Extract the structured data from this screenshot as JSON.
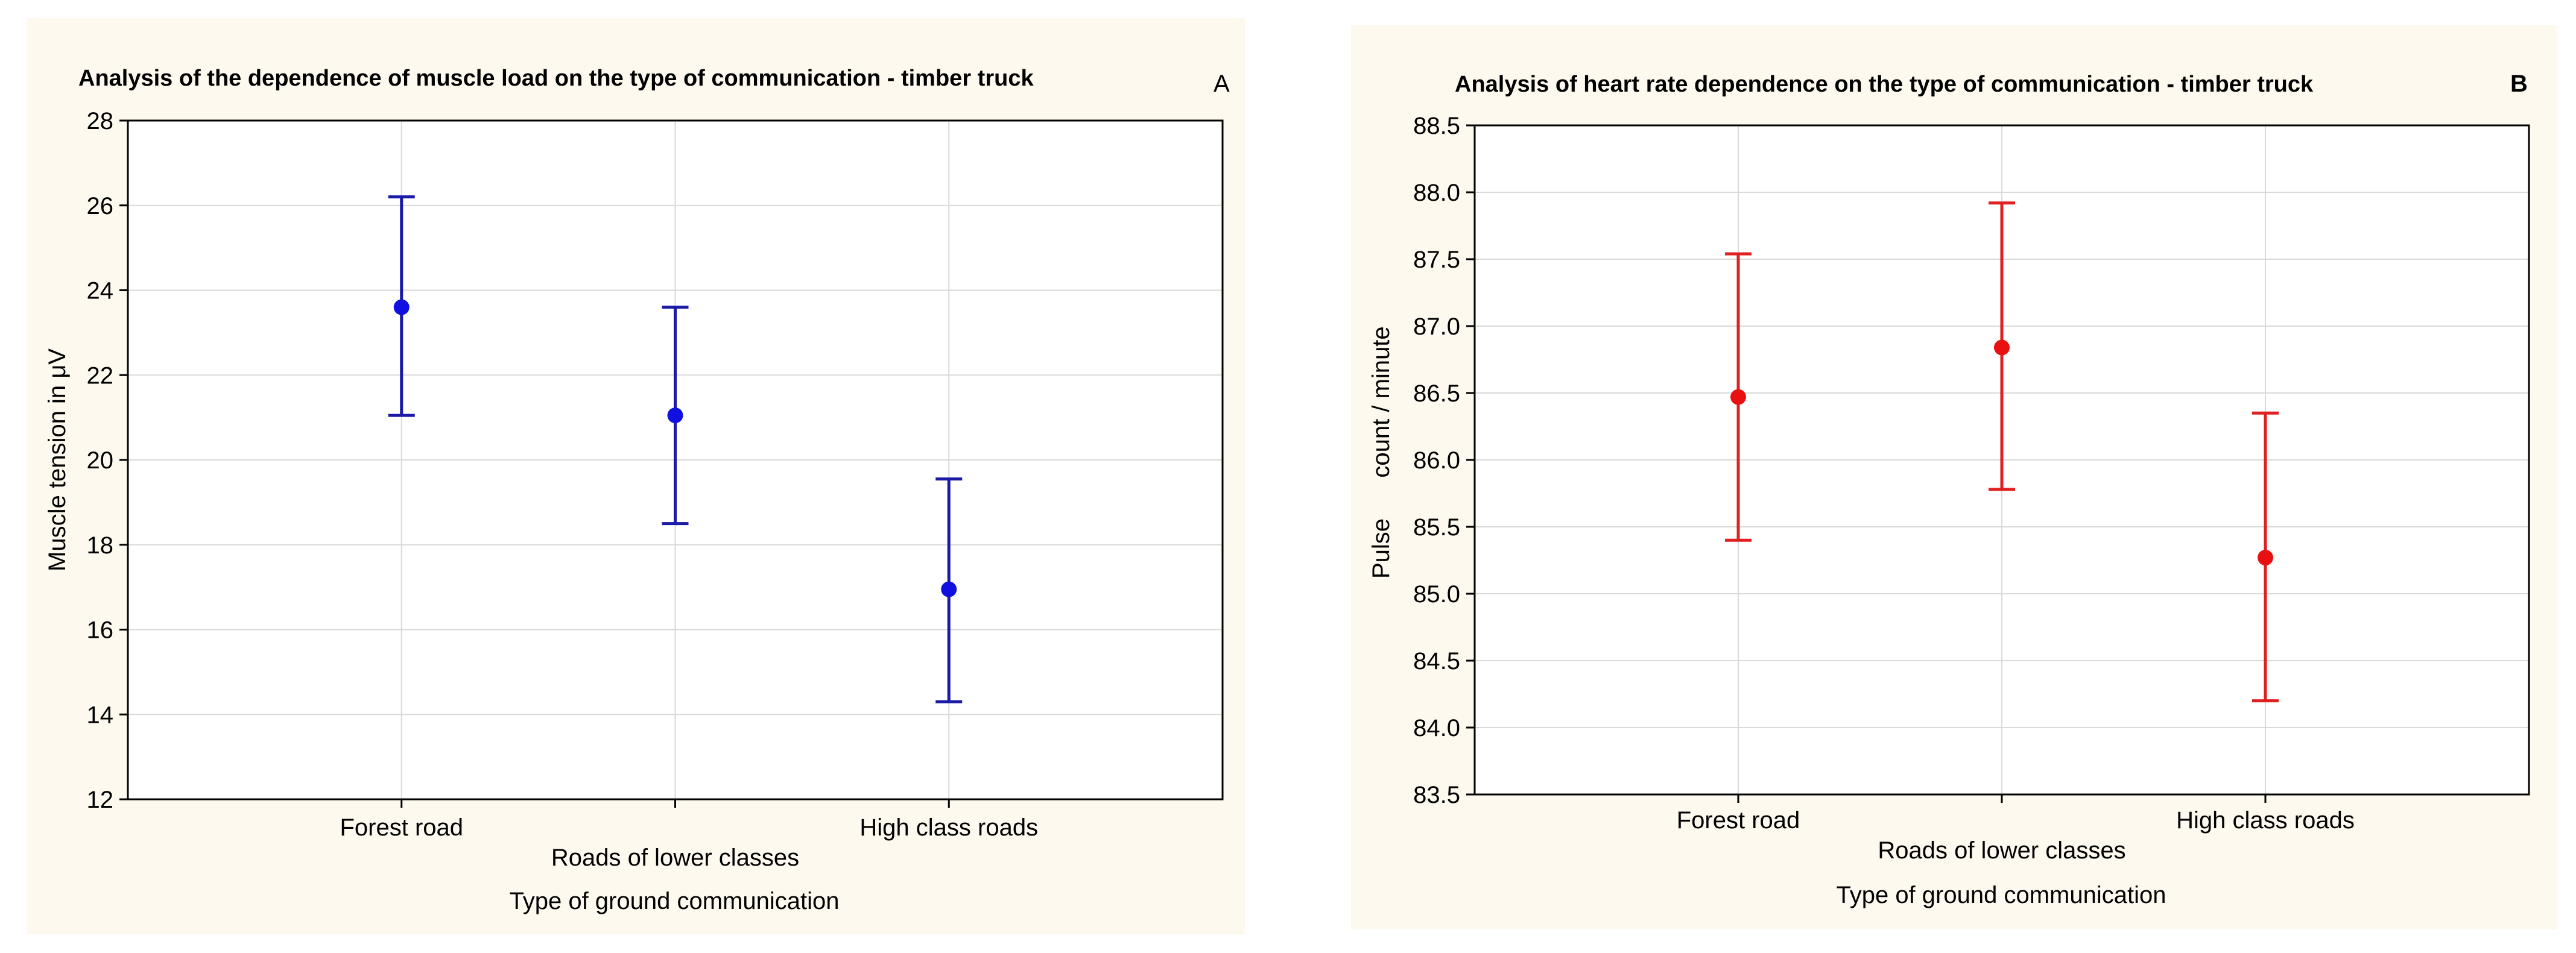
{
  "chart_data": [
    {
      "type": "errorbar",
      "panel": "A",
      "title": "Analysis of the dependence of muscle load on the type of communication - timber truck",
      "xlabel": "Type of ground communication",
      "ylabel": "Muscle tension in μV",
      "categories": [
        "Forest road",
        "Roads of lower classes",
        "High class roads"
      ],
      "means": [
        23.6,
        21.05,
        16.95
      ],
      "lower": [
        21.05,
        18.5,
        14.3
      ],
      "upper": [
        26.2,
        23.6,
        19.55
      ],
      "ylim": [
        12,
        28
      ],
      "yticks": [
        "12",
        "14",
        "16",
        "18",
        "20",
        "22",
        "24",
        "26",
        "28"
      ],
      "color": "#1a1aa6",
      "marker_color": "#1010e0",
      "grid": true
    },
    {
      "type": "errorbar",
      "panel": "B",
      "title": "Analysis of heart rate dependence on the type of communication - timber truck",
      "xlabel": "Type of ground communication",
      "ylabel_main": "Pulse",
      "ylabel_sub": "count / minute",
      "categories": [
        "Forest road",
        "Roads of lower classes",
        "High class roads"
      ],
      "means": [
        86.47,
        86.84,
        85.27
      ],
      "lower": [
        85.4,
        85.78,
        84.2
      ],
      "upper": [
        87.54,
        87.92,
        86.35
      ],
      "ylim": [
        83.5,
        88.5
      ],
      "yticks": [
        "83.5",
        "84.0",
        "84.5",
        "85.0",
        "85.5",
        "86.0",
        "86.5",
        "87.0",
        "87.5",
        "88.0",
        "88.5"
      ],
      "color": "#e02020",
      "marker_color": "#e81010",
      "grid": true
    }
  ]
}
